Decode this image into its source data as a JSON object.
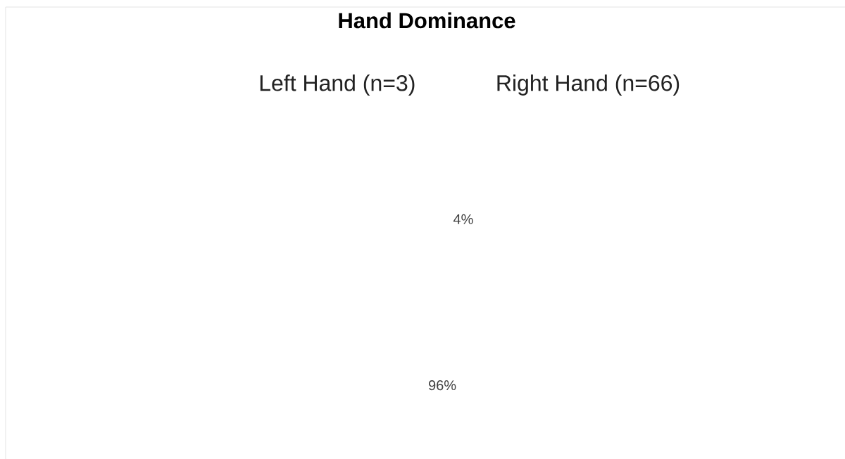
{
  "chart_data": {
    "type": "other",
    "title": "Hand Dominance",
    "categories": [
      "Left Hand (n=3)",
      "Right Hand (n=66)"
    ],
    "values": [
      4,
      96
    ],
    "value_labels": [
      "4%",
      "96%"
    ]
  }
}
